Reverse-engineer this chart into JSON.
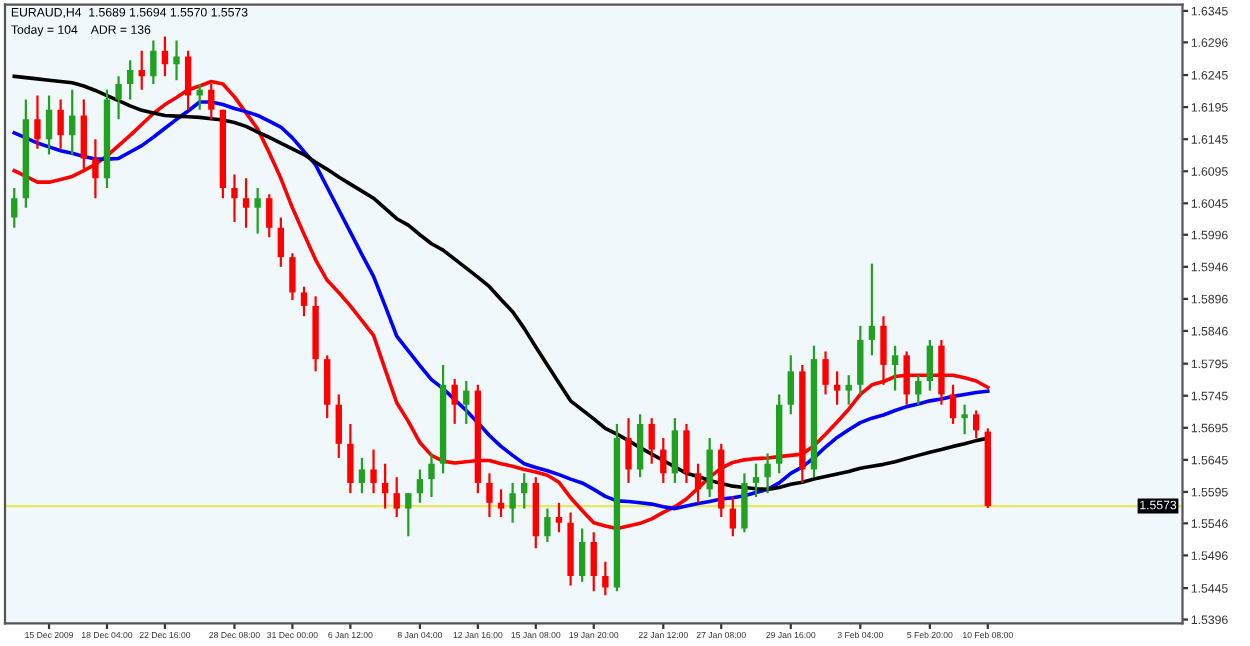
{
  "chart_data": {
    "type": "candlestick",
    "annotations": [
      "EURAUD,H4  1.5689 1.5694 1.5570 1.5573",
      "Today = 104    ADR = 136"
    ],
    "categories": [
      null,
      null,
      null,
      "15 Dec 2009",
      null,
      null,
      null,
      null,
      "18 Dec 04:00",
      null,
      null,
      null,
      null,
      "22 Dec 16:00",
      null,
      null,
      null,
      null,
      null,
      "28 Dec 08:00",
      null,
      null,
      null,
      null,
      "31 Dec 00:00",
      null,
      null,
      null,
      null,
      "6 Jan 12:00",
      null,
      null,
      null,
      null,
      null,
      "8 Jan 04:00",
      null,
      null,
      null,
      null,
      "12 Jan 16:00",
      null,
      null,
      null,
      null,
      "15 Jan 08:00",
      null,
      null,
      null,
      null,
      "19 Jan 20:00",
      null,
      null,
      null,
      null,
      null,
      "22 Jan 12:00",
      null,
      null,
      null,
      null,
      "27 Jan 08:00",
      null,
      null,
      null,
      null,
      null,
      "29 Jan 16:00",
      null,
      null,
      null,
      null,
      null,
      "3 Feb 04:00",
      null,
      null,
      null,
      null,
      null,
      "5 Feb 20:00",
      null,
      null,
      null,
      null,
      "10 Feb 08:00"
    ],
    "ohlc": [
      [
        1.6023,
        1.6069,
        1.6007,
        1.6053
      ],
      [
        1.6053,
        1.6207,
        1.6038,
        1.6176
      ],
      [
        1.6176,
        1.6213,
        1.613,
        1.6145
      ],
      [
        1.6145,
        1.6213,
        1.6121,
        1.6191
      ],
      [
        1.6191,
        1.6207,
        1.613,
        1.6151
      ],
      [
        1.6151,
        1.6222,
        1.6121,
        1.6182
      ],
      [
        1.6182,
        1.6207,
        1.6099,
        1.6115
      ],
      [
        1.6115,
        1.6145,
        1.6053,
        1.6084
      ],
      [
        1.6084,
        1.6222,
        1.6069,
        1.6207
      ],
      [
        1.6207,
        1.6243,
        1.6176,
        1.6231
      ],
      [
        1.6231,
        1.6268,
        1.6207,
        1.6253
      ],
      [
        1.6253,
        1.6283,
        1.6222,
        1.6243
      ],
      [
        1.6243,
        1.6299,
        1.6231,
        1.6283
      ],
      [
        1.6283,
        1.6305,
        1.6243,
        1.6262
      ],
      [
        1.6262,
        1.6299,
        1.6237,
        1.6274
      ],
      [
        1.6274,
        1.6283,
        1.6191,
        1.6213
      ],
      [
        1.6213,
        1.6231,
        1.6191,
        1.6222
      ],
      [
        1.6222,
        1.6231,
        1.6176,
        1.6191
      ],
      [
        1.6191,
        1.6191,
        1.6053,
        1.6069
      ],
      [
        1.6069,
        1.609,
        1.6016,
        1.6053
      ],
      [
        1.6053,
        1.6084,
        1.6007,
        1.6038
      ],
      [
        1.6038,
        1.6069,
        1.5998,
        1.6053
      ],
      [
        1.6053,
        1.6059,
        1.5992,
        1.6007
      ],
      [
        1.6007,
        1.6023,
        1.5946,
        1.5961
      ],
      [
        1.5961,
        1.5967,
        1.5894,
        1.5906
      ],
      [
        1.5906,
        1.5915,
        1.5869,
        1.5885
      ],
      [
        1.5885,
        1.59,
        1.5783,
        1.5802
      ],
      [
        1.5802,
        1.5808,
        1.571,
        1.5731
      ],
      [
        1.5731,
        1.5747,
        1.5648,
        1.567
      ],
      [
        1.567,
        1.5701,
        1.5593,
        1.5609
      ],
      [
        1.5609,
        1.5648,
        1.5593,
        1.563
      ],
      [
        1.563,
        1.5661,
        1.5593,
        1.5609
      ],
      [
        1.5609,
        1.5639,
        1.5569,
        1.5593
      ],
      [
        1.5593,
        1.5618,
        1.5556,
        1.5569
      ],
      [
        1.5569,
        1.5593,
        1.5526,
        1.5593
      ],
      [
        1.5593,
        1.563,
        1.5578,
        1.5615
      ],
      [
        1.5615,
        1.5655,
        1.5587,
        1.5639
      ],
      [
        1.5639,
        1.5793,
        1.5624,
        1.5762
      ],
      [
        1.5762,
        1.5771,
        1.5701,
        1.5731
      ],
      [
        1.5731,
        1.5768,
        1.5701,
        1.5753
      ],
      [
        1.5753,
        1.5762,
        1.5593,
        1.5609
      ],
      [
        1.5609,
        1.5624,
        1.5556,
        1.5578
      ],
      [
        1.5578,
        1.5599,
        1.5556,
        1.5569
      ],
      [
        1.5569,
        1.5609,
        1.5547,
        1.5593
      ],
      [
        1.5593,
        1.5624,
        1.5569,
        1.5609
      ],
      [
        1.5609,
        1.5618,
        1.5507,
        1.5526
      ],
      [
        1.5526,
        1.5569,
        1.5517,
        1.5556
      ],
      [
        1.5556,
        1.5578,
        1.5532,
        1.5547
      ],
      [
        1.5547,
        1.5563,
        1.5449,
        1.5464
      ],
      [
        1.5464,
        1.5538,
        1.5455,
        1.5517
      ],
      [
        1.5517,
        1.5532,
        1.544,
        1.5464
      ],
      [
        1.5464,
        1.5486,
        1.5434,
        1.5446
      ],
      [
        1.5446,
        1.5701,
        1.544,
        1.5679
      ],
      [
        1.5679,
        1.571,
        1.5609,
        1.563
      ],
      [
        1.563,
        1.5716,
        1.5618,
        1.5701
      ],
      [
        1.5701,
        1.571,
        1.5639,
        1.5661
      ],
      [
        1.5661,
        1.5679,
        1.5609,
        1.5624
      ],
      [
        1.5624,
        1.571,
        1.5609,
        1.5691
      ],
      [
        1.5691,
        1.5701,
        1.5609,
        1.5624
      ],
      [
        1.5624,
        1.5639,
        1.5578,
        1.5599
      ],
      [
        1.5599,
        1.5679,
        1.5587,
        1.5661
      ],
      [
        1.5661,
        1.567,
        1.5556,
        1.5569
      ],
      [
        1.5569,
        1.5587,
        1.5526,
        1.5538
      ],
      [
        1.5538,
        1.5624,
        1.5532,
        1.5609
      ],
      [
        1.5609,
        1.5639,
        1.5587,
        1.5618
      ],
      [
        1.5618,
        1.5655,
        1.5593,
        1.5639
      ],
      [
        1.5639,
        1.5747,
        1.5624,
        1.5731
      ],
      [
        1.5731,
        1.5808,
        1.5716,
        1.5783
      ],
      [
        1.5783,
        1.5793,
        1.5609,
        1.563
      ],
      [
        1.563,
        1.5823,
        1.5618,
        1.5802
      ],
      [
        1.5802,
        1.5814,
        1.5747,
        1.5762
      ],
      [
        1.5762,
        1.5783,
        1.5731,
        1.5753
      ],
      [
        1.5753,
        1.5777,
        1.5731,
        1.5762
      ],
      [
        1.5762,
        1.5854,
        1.5747,
        1.5832
      ],
      [
        1.5832,
        1.5951,
        1.5808,
        1.5854
      ],
      [
        1.5854,
        1.5869,
        1.5762,
        1.5793
      ],
      [
        1.5793,
        1.5823,
        1.5753,
        1.5808
      ],
      [
        1.5808,
        1.5814,
        1.5731,
        1.5747
      ],
      [
        1.5747,
        1.5777,
        1.5731,
        1.5768
      ],
      [
        1.5768,
        1.5832,
        1.5753,
        1.5823
      ],
      [
        1.5823,
        1.5832,
        1.5731,
        1.5747
      ],
      [
        1.5747,
        1.5762,
        1.5701,
        1.571
      ],
      [
        1.571,
        1.5731,
        1.5685,
        1.5716
      ],
      [
        1.5716,
        1.5722,
        1.5679,
        1.5691
      ],
      [
        1.5689,
        1.5694,
        1.557,
        1.5573
      ]
    ],
    "colors": [
      "#22a022",
      "#22a022",
      "#ff0000",
      "#22a022",
      "#ff0000",
      "#22a022",
      "#ff0000",
      "#ff0000",
      "#22a022",
      "#22a022",
      "#22a022",
      "#ff0000",
      "#22a022",
      "#ff0000",
      "#22a022",
      "#ff0000",
      "#22a022",
      "#ff0000",
      "#ff0000",
      "#ff0000",
      "#ff0000",
      "#22a022",
      "#ff0000",
      "#ff0000",
      "#ff0000",
      "#ff0000",
      "#ff0000",
      "#ff0000",
      "#ff0000",
      "#ff0000",
      "#22a022",
      "#ff0000",
      "#ff0000",
      "#ff0000",
      "#22a022",
      "#22a022",
      "#22a022",
      "#22a022",
      "#ff0000",
      "#22a022",
      "#ff0000",
      "#ff0000",
      "#ff0000",
      "#22a022",
      "#22a022",
      "#ff0000",
      "#22a022",
      "#ff0000",
      "#ff0000",
      "#22a022",
      "#ff0000",
      "#ff0000",
      "#22a022",
      "#ff0000",
      "#22a022",
      "#ff0000",
      "#ff0000",
      "#22a022",
      "#ff0000",
      "#ff0000",
      "#22a022",
      "#ff0000",
      "#ff0000",
      "#22a022",
      "#22a022",
      "#22a022",
      "#22a022",
      "#22a022",
      "#ff0000",
      "#22a022",
      "#ff0000",
      "#ff0000",
      "#22a022",
      "#22a022",
      "#22a022",
      "#ff0000",
      "#22a022",
      "#ff0000",
      "#22a022",
      "#22a022",
      "#ff0000",
      "#ff0000",
      "#22a022",
      "#ff0000",
      "#ff0000"
    ],
    "series": [
      {
        "type": "line",
        "color": "#ff0000",
        "values": [
          1.6096,
          1.6087,
          1.6078,
          1.6078,
          1.6082,
          1.6087,
          1.6096,
          1.6106,
          1.6119,
          1.6135,
          1.6151,
          1.6168,
          1.6185,
          1.6199,
          1.621,
          1.6222,
          1.6228,
          1.6235,
          1.6231,
          1.6211,
          1.6186,
          1.6161,
          1.6124,
          1.6084,
          1.6038,
          1.5997,
          1.5957,
          1.5925,
          1.5906,
          1.5885,
          1.5862,
          1.5839,
          1.5786,
          1.5734,
          1.5705,
          1.5672,
          1.5652,
          1.5643,
          1.564,
          1.5642,
          1.5644,
          1.5644,
          1.5639,
          1.5635,
          1.563,
          1.5626,
          1.5621,
          1.561,
          1.5586,
          1.5566,
          1.5547,
          1.5542,
          1.5538,
          1.5542,
          1.5546,
          1.5553,
          1.5563,
          1.5572,
          1.5584,
          1.5601,
          1.5618,
          1.5632,
          1.5641,
          1.5645,
          1.5647,
          1.5648,
          1.565,
          1.5652,
          1.5654,
          1.5667,
          1.5685,
          1.5704,
          1.5724,
          1.5747,
          1.5762,
          1.5767,
          1.5775,
          1.5777,
          1.5777,
          1.5777,
          1.5777,
          1.5777,
          1.5773,
          1.5768,
          1.5758
        ]
      },
      {
        "type": "line",
        "color": "#0000ff",
        "values": [
          1.6155,
          1.6147,
          1.6139,
          1.6133,
          1.6127,
          1.6123,
          1.6118,
          1.6114,
          1.6114,
          1.6115,
          1.6125,
          1.6135,
          1.6148,
          1.6162,
          1.6176,
          1.6189,
          1.6203,
          1.6203,
          1.6199,
          1.6193,
          1.6188,
          1.6182,
          1.6173,
          1.6164,
          1.6147,
          1.6126,
          1.6105,
          1.607,
          1.6035,
          1.6,
          1.5965,
          1.5931,
          1.5885,
          1.5838,
          1.5815,
          1.5792,
          1.577,
          1.5756,
          1.5739,
          1.5722,
          1.5703,
          1.5683,
          1.5666,
          1.5652,
          1.5639,
          1.5633,
          1.5628,
          1.5622,
          1.5615,
          1.5609,
          1.5599,
          1.5588,
          1.5581,
          1.558,
          1.5578,
          1.5576,
          1.5572,
          1.5569,
          1.5573,
          1.5577,
          1.558,
          1.5584,
          1.5586,
          1.5589,
          1.5594,
          1.5599,
          1.5609,
          1.5624,
          1.5634,
          1.5648,
          1.5665,
          1.568,
          1.5692,
          1.5703,
          1.571,
          1.5715,
          1.5722,
          1.5728,
          1.5732,
          1.5737,
          1.574,
          1.5744,
          1.5747,
          1.575,
          1.5752
        ]
      },
      {
        "type": "line",
        "color": "#000000",
        "values": [
          1.6243,
          1.6241,
          1.6239,
          1.6237,
          1.6235,
          1.6233,
          1.6228,
          1.6221,
          1.6213,
          1.6205,
          1.6197,
          1.619,
          1.6186,
          1.6182,
          1.6181,
          1.618,
          1.6179,
          1.6177,
          1.6175,
          1.6171,
          1.6165,
          1.6156,
          1.6148,
          1.6139,
          1.613,
          1.6121,
          1.6109,
          1.6098,
          1.6086,
          1.6075,
          1.6064,
          1.6053,
          1.6037,
          1.6021,
          1.6011,
          1.5996,
          1.5982,
          1.5972,
          1.5958,
          1.5944,
          1.593,
          1.5915,
          1.5895,
          1.5876,
          1.585,
          1.5821,
          1.5793,
          1.5765,
          1.5737,
          1.5723,
          1.5709,
          1.5694,
          1.5685,
          1.5675,
          1.5664,
          1.5654,
          1.5644,
          1.5634,
          1.5624,
          1.5619,
          1.5613,
          1.5608,
          1.5604,
          1.5602,
          1.56,
          1.5599,
          1.5602,
          1.5607,
          1.561,
          1.5615,
          1.5619,
          1.5623,
          1.5627,
          1.5632,
          1.5635,
          1.5638,
          1.5642,
          1.5647,
          1.5652,
          1.5657,
          1.5661,
          1.5666,
          1.567,
          1.5675,
          1.5679
        ]
      }
    ],
    "ylim": [
      1.539,
      1.6355
    ],
    "yticks": [
      1.6345,
      1.6296,
      1.6245,
      1.6195,
      1.6145,
      1.6095,
      1.6045,
      1.5996,
      1.5946,
      1.5896,
      1.5846,
      1.5795,
      1.5745,
      1.5695,
      1.5645,
      1.5595,
      1.5546,
      1.5496,
      1.5445,
      1.5396
    ],
    "ref_lines": [
      {
        "axis": "y",
        "value": 1.5573,
        "label": "1.5573",
        "color": "#e8e860",
        "line_style": "solid"
      }
    ],
    "grid": false,
    "legend": false
  }
}
